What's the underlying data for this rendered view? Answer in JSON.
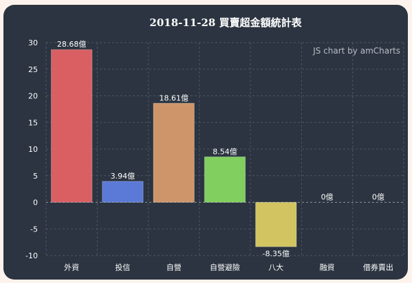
{
  "chart_data": {
    "type": "bar",
    "title": "2018-11-28 買賣超金額統計表",
    "credit": "JS chart by amCharts",
    "categories": [
      "外資",
      "投信",
      "自營",
      "自營避險",
      "八大",
      "融資",
      "借券賣出"
    ],
    "values": [
      28.68,
      3.94,
      18.61,
      8.54,
      -8.35,
      0,
      0
    ],
    "value_labels": [
      "28.68億",
      "3.94億",
      "18.61億",
      "8.54億",
      "-8.35億",
      "0億",
      "0億"
    ],
    "colors": [
      "#d95f63",
      "#5b79d6",
      "#cf956a",
      "#81cf5e",
      "#d1c461",
      "#b9a6d6",
      "#6fb7c6"
    ],
    "ylim": [
      -10,
      30
    ],
    "yticks": [
      -10,
      -5,
      0,
      5,
      10,
      15,
      20,
      25,
      30
    ],
    "grid": true,
    "xlabel": "",
    "ylabel": ""
  }
}
